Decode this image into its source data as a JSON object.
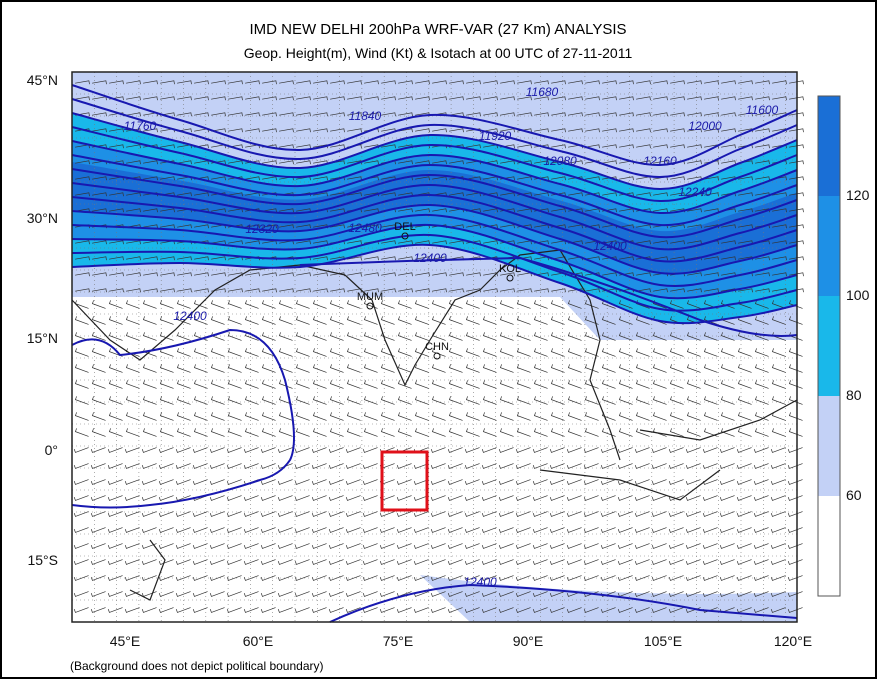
{
  "header": {
    "title": "IMD NEW DELHI 200hPa WRF-VAR (27 Km) ANALYSIS",
    "subtitle": "Geop. Height(m), Wind (Kt) & Isotach  at 00 UTC of 27-11-2011"
  },
  "map": {
    "lat_labels": [
      "45°N",
      "30°N",
      "15°N",
      "0°",
      "15°S"
    ],
    "lon_labels": [
      "45°E",
      "60°E",
      "75°E",
      "90°E",
      "105°E",
      "120°E"
    ],
    "contour_labels": [
      "11680",
      "11600",
      "11760",
      "11840",
      "11920",
      "12000",
      "12080",
      "12160",
      "12240",
      "12320",
      "12400",
      "12480",
      "12400",
      "12400",
      "12400"
    ],
    "cities": [
      "DEL",
      "MUM",
      "KOL",
      "CHN"
    ],
    "colorbar_labels": [
      "120",
      "100",
      "80",
      "60"
    ]
  },
  "footer": {
    "note": "(Background does not depict political boundary)"
  }
}
